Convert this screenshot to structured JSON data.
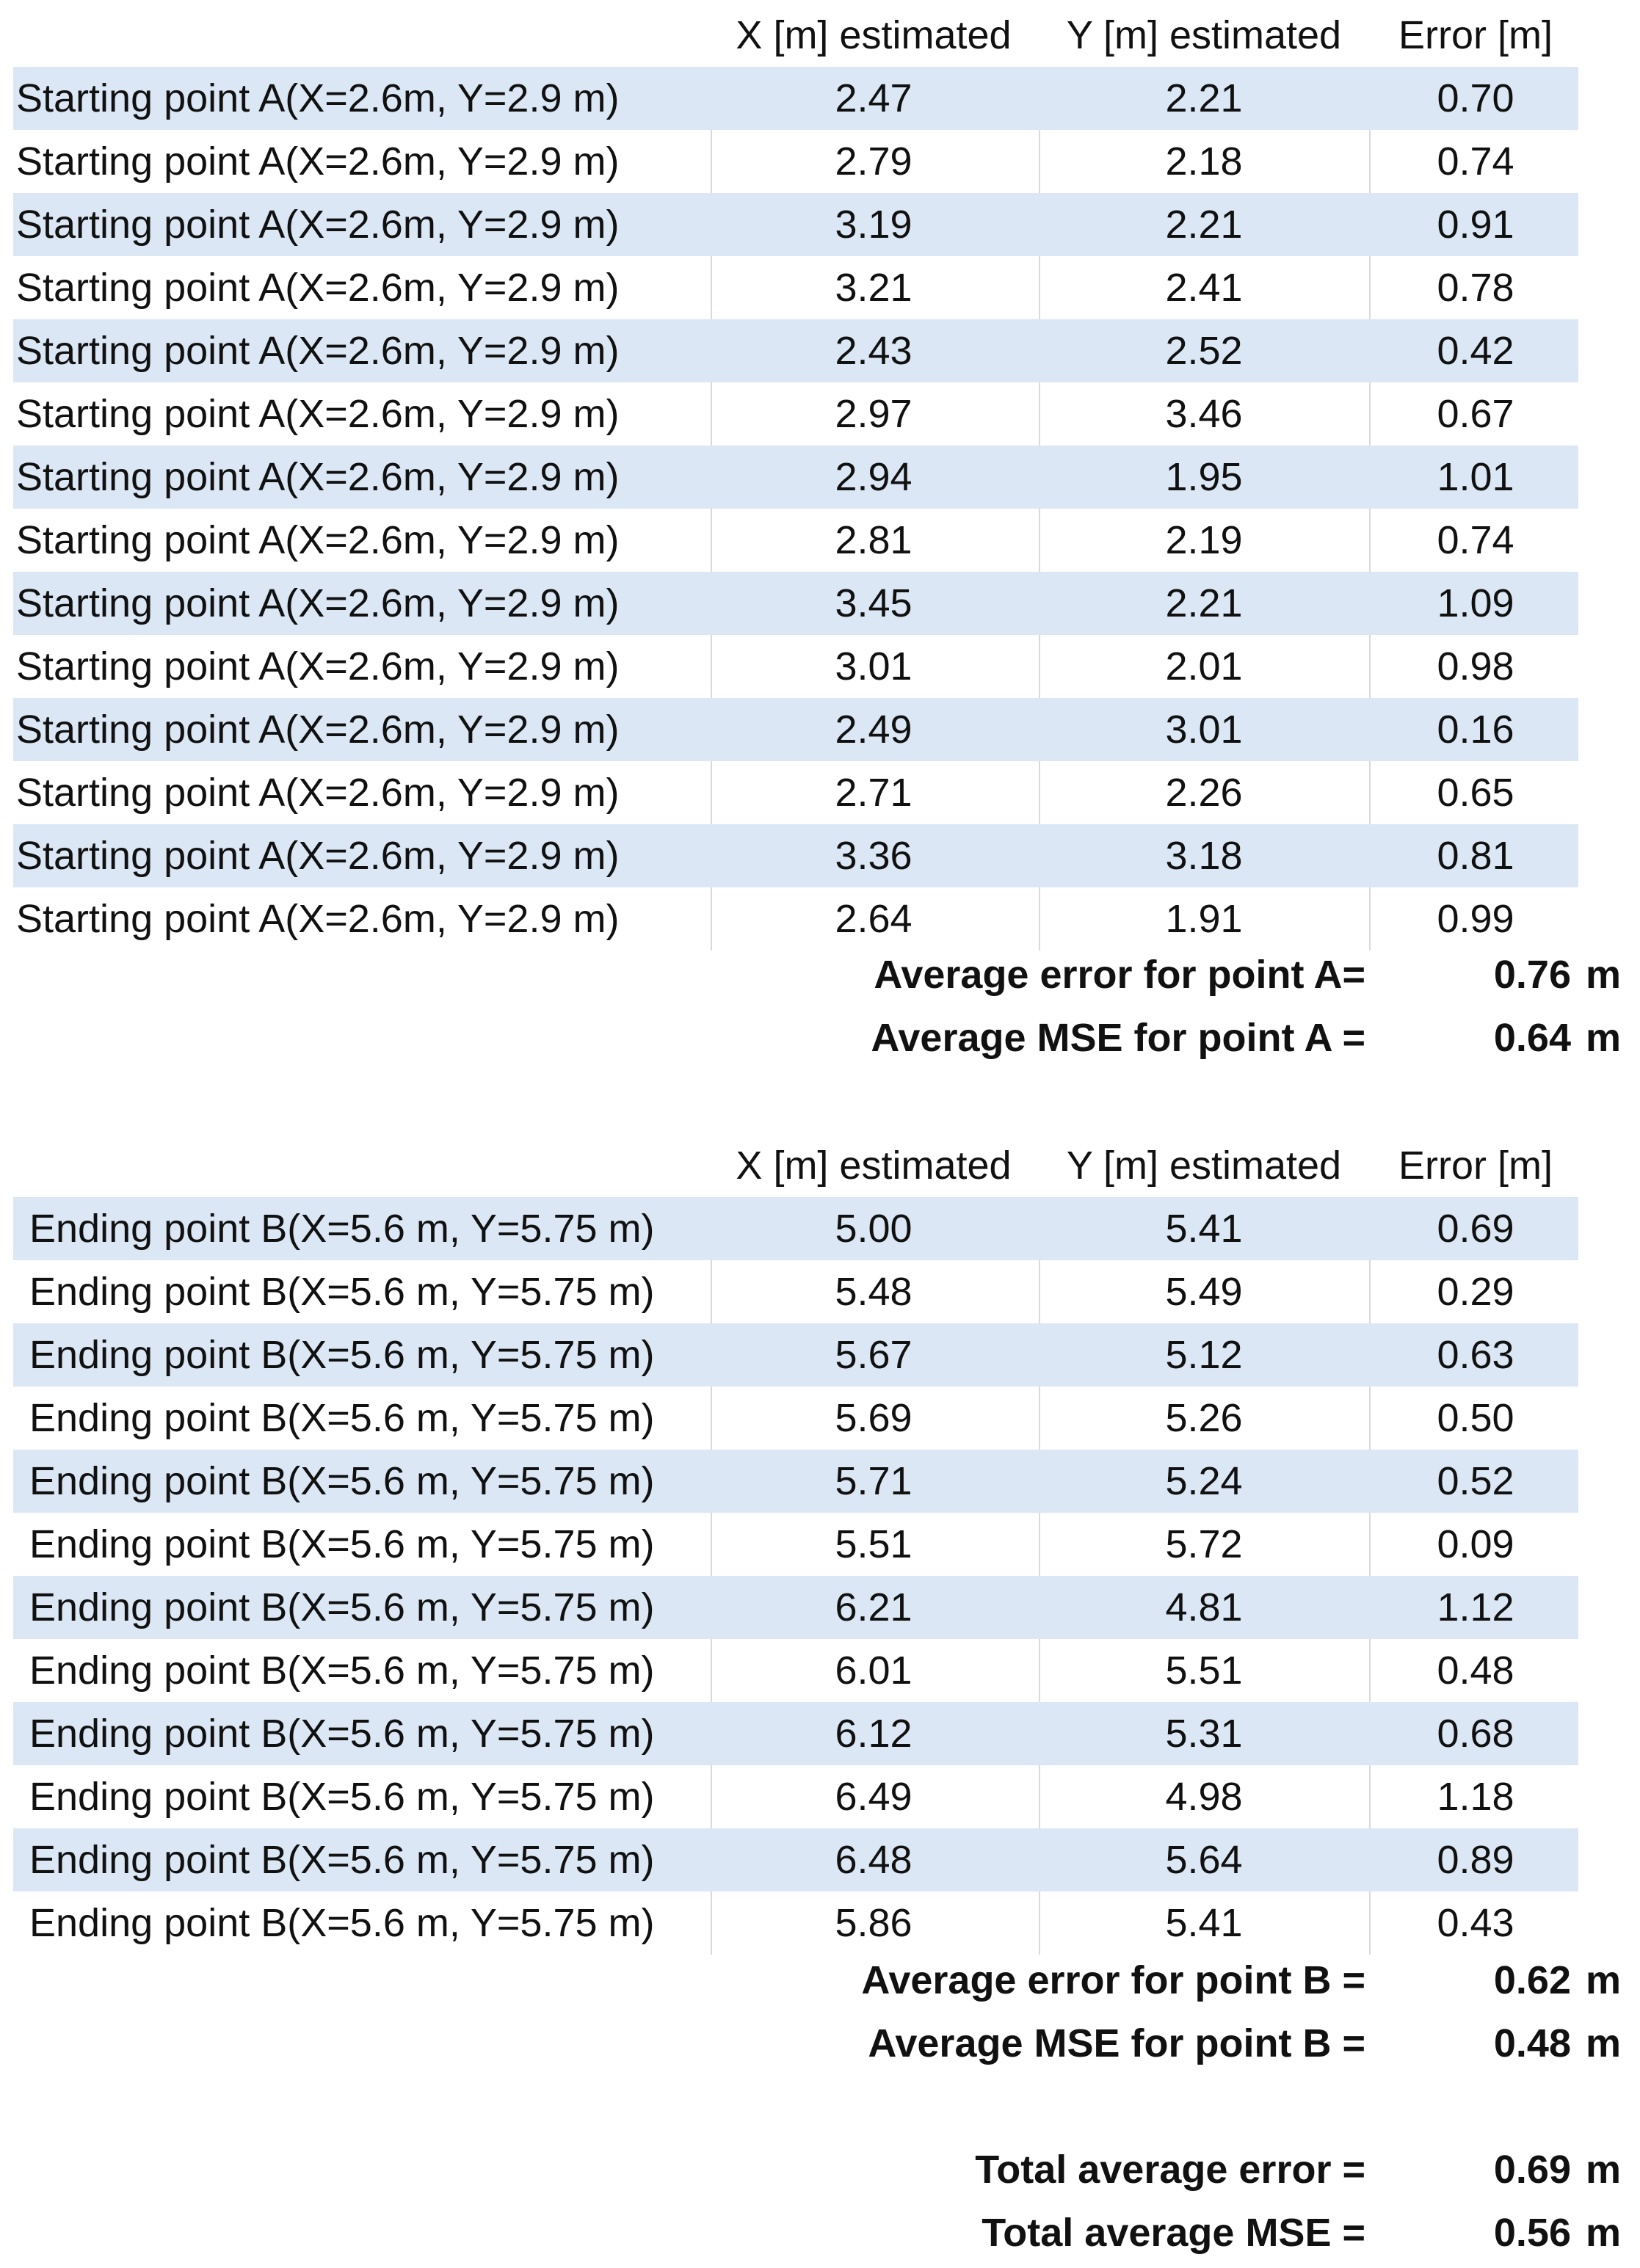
{
  "headers": {
    "x": "X  [m] estimated",
    "y": "Y  [m] estimated",
    "err": "Error [m]"
  },
  "tableA": {
    "label": "Starting point A(X=2.6m, Y=2.9 m)",
    "rows": [
      {
        "x": "2.47",
        "y": "2.21",
        "err": "0.70"
      },
      {
        "x": "2.79",
        "y": "2.18",
        "err": "0.74"
      },
      {
        "x": "3.19",
        "y": "2.21",
        "err": "0.91"
      },
      {
        "x": "3.21",
        "y": "2.41",
        "err": "0.78"
      },
      {
        "x": "2.43",
        "y": "2.52",
        "err": "0.42"
      },
      {
        "x": "2.97",
        "y": "3.46",
        "err": "0.67"
      },
      {
        "x": "2.94",
        "y": "1.95",
        "err": "1.01"
      },
      {
        "x": "2.81",
        "y": "2.19",
        "err": "0.74"
      },
      {
        "x": "3.45",
        "y": "2.21",
        "err": "1.09"
      },
      {
        "x": "3.01",
        "y": "2.01",
        "err": "0.98"
      },
      {
        "x": "2.49",
        "y": "3.01",
        "err": "0.16"
      },
      {
        "x": "2.71",
        "y": "2.26",
        "err": "0.65"
      },
      {
        "x": "3.36",
        "y": "3.18",
        "err": "0.81"
      },
      {
        "x": "2.64",
        "y": "1.91",
        "err": "0.99"
      }
    ],
    "summary": [
      {
        "label": "Average error for point A=",
        "value": "0.76",
        "unit": "m"
      },
      {
        "label": "Average MSE for point A =",
        "value": "0.64",
        "unit": "m"
      }
    ]
  },
  "tableB": {
    "label": "Ending point B(X=5.6 m, Y=5.75 m)",
    "rows": [
      {
        "x": "5.00",
        "y": "5.41",
        "err": "0.69"
      },
      {
        "x": "5.48",
        "y": "5.49",
        "err": "0.29"
      },
      {
        "x": "5.67",
        "y": "5.12",
        "err": "0.63"
      },
      {
        "x": "5.69",
        "y": "5.26",
        "err": "0.50"
      },
      {
        "x": "5.71",
        "y": "5.24",
        "err": "0.52"
      },
      {
        "x": "5.51",
        "y": "5.72",
        "err": "0.09"
      },
      {
        "x": "6.21",
        "y": "4.81",
        "err": "1.12"
      },
      {
        "x": "6.01",
        "y": "5.51",
        "err": "0.48"
      },
      {
        "x": "6.12",
        "y": "5.31",
        "err": "0.68"
      },
      {
        "x": "6.49",
        "y": "4.98",
        "err": "1.18"
      },
      {
        "x": "6.48",
        "y": "5.64",
        "err": "0.89"
      },
      {
        "x": "5.86",
        "y": "5.41",
        "err": "0.43"
      }
    ],
    "summary": [
      {
        "label": "Average error for point B =",
        "value": "0.62",
        "unit": "m"
      },
      {
        "label": "Average MSE for point B =",
        "value": "0.48",
        "unit": "m"
      }
    ]
  },
  "total": [
    {
      "label": "Total average error  =",
      "value": "0.69",
      "unit": "m"
    },
    {
      "label": "Total average MSE =",
      "value": "0.56",
      "unit": "m"
    }
  ],
  "colors": {
    "band": "#dbe7f5",
    "gridline": "#d9d9d9",
    "text": "#111111"
  }
}
